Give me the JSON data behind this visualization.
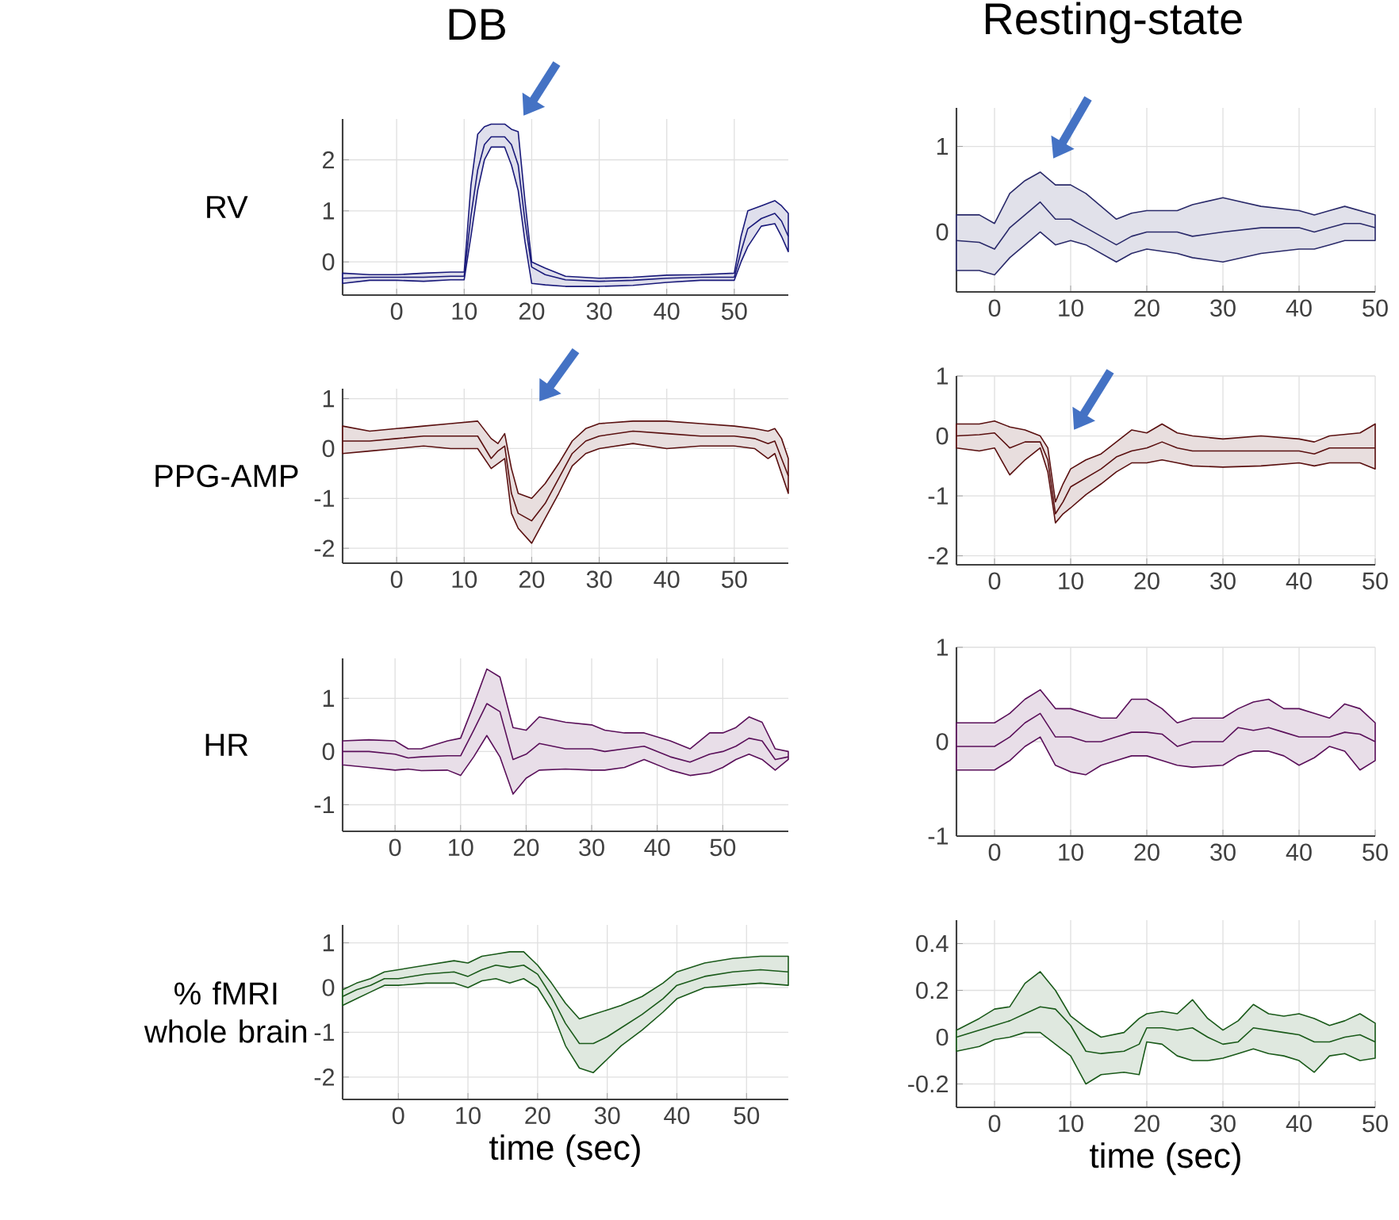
{
  "chart_data": [
    {
      "type": "line",
      "title": "DB",
      "ylabel": "RV",
      "xlim": [
        -8,
        58
      ],
      "ylim": [
        -0.65,
        2.8
      ],
      "xticks": [
        0,
        10,
        20,
        30,
        40,
        50
      ],
      "yticks": [
        0,
        1,
        2
      ],
      "grid": true,
      "series": [
        {
          "color": "#1a1a7a",
          "x": [
            -8,
            -4,
            0,
            4,
            8,
            10,
            11,
            12,
            13,
            14,
            16,
            17,
            18,
            19,
            20,
            22,
            25,
            30,
            35,
            40,
            45,
            50,
            51,
            52,
            54,
            56,
            57,
            58
          ],
          "values": [
            -0.32,
            -0.3,
            -0.3,
            -0.3,
            -0.28,
            -0.28,
            0.9,
            1.8,
            2.3,
            2.45,
            2.45,
            2.3,
            1.9,
            0.8,
            -0.1,
            -0.25,
            -0.35,
            -0.38,
            -0.36,
            -0.32,
            -0.3,
            -0.3,
            0.2,
            0.65,
            0.85,
            0.95,
            0.8,
            0.5
          ],
          "upper": [
            -0.22,
            -0.25,
            -0.25,
            -0.22,
            -0.2,
            -0.2,
            1.5,
            2.5,
            2.65,
            2.7,
            2.7,
            2.6,
            2.55,
            1.2,
            0.0,
            -0.12,
            -0.28,
            -0.32,
            -0.3,
            -0.26,
            -0.25,
            -0.22,
            0.5,
            1.0,
            1.1,
            1.2,
            1.1,
            0.95
          ],
          "lower": [
            -0.42,
            -0.36,
            -0.36,
            -0.38,
            -0.35,
            -0.35,
            0.5,
            1.4,
            2.0,
            2.25,
            2.25,
            1.9,
            1.4,
            0.4,
            -0.42,
            -0.45,
            -0.48,
            -0.48,
            -0.46,
            -0.4,
            -0.36,
            -0.36,
            0.0,
            0.3,
            0.7,
            0.75,
            0.5,
            0.2
          ]
        }
      ]
    },
    {
      "type": "line",
      "title": "Resting-state",
      "xlim": [
        -5,
        50
      ],
      "ylim": [
        -0.7,
        1.45
      ],
      "xticks": [
        0,
        10,
        20,
        30,
        40,
        50
      ],
      "yticks": [
        0,
        1
      ],
      "grid": true,
      "series": [
        {
          "color": "#2a2a6a",
          "x": [
            -5,
            -2,
            0,
            2,
            4,
            6,
            8,
            10,
            12,
            16,
            18,
            20,
            24,
            26,
            30,
            35,
            40,
            42,
            44,
            46,
            48,
            50
          ],
          "values": [
            -0.1,
            -0.12,
            -0.2,
            0.05,
            0.2,
            0.35,
            0.15,
            0.15,
            0.05,
            -0.15,
            -0.05,
            0.0,
            0.0,
            -0.05,
            0.0,
            0.05,
            0.05,
            0.0,
            0.05,
            0.1,
            0.1,
            0.05
          ],
          "upper": [
            0.2,
            0.2,
            0.1,
            0.45,
            0.6,
            0.7,
            0.55,
            0.55,
            0.45,
            0.15,
            0.22,
            0.25,
            0.25,
            0.32,
            0.4,
            0.3,
            0.25,
            0.2,
            0.25,
            0.3,
            0.25,
            0.2
          ],
          "lower": [
            -0.45,
            -0.45,
            -0.5,
            -0.3,
            -0.15,
            0.0,
            -0.15,
            -0.1,
            -0.15,
            -0.35,
            -0.25,
            -0.2,
            -0.25,
            -0.3,
            -0.35,
            -0.25,
            -0.2,
            -0.2,
            -0.15,
            -0.1,
            -0.1,
            -0.1
          ]
        }
      ]
    },
    {
      "type": "line",
      "ylabel": "PPG-AMP",
      "xlim": [
        -8,
        58
      ],
      "ylim": [
        -2.3,
        1.2
      ],
      "xticks": [
        0,
        10,
        20,
        30,
        40,
        50
      ],
      "yticks": [
        -2,
        -1,
        0,
        1
      ],
      "grid": true,
      "series": [
        {
          "color": "#5a1010",
          "x": [
            -8,
            -4,
            0,
            4,
            8,
            12,
            14,
            15,
            16,
            17,
            18,
            20,
            22,
            24,
            26,
            28,
            30,
            35,
            40,
            45,
            50,
            53,
            55,
            56,
            57,
            58
          ],
          "values": [
            0.15,
            0.15,
            0.2,
            0.25,
            0.25,
            0.25,
            -0.2,
            -0.05,
            0.05,
            -0.9,
            -1.3,
            -1.45,
            -1.1,
            -0.6,
            -0.1,
            0.15,
            0.25,
            0.35,
            0.3,
            0.25,
            0.25,
            0.2,
            0.1,
            0.15,
            -0.2,
            -0.55
          ],
          "upper": [
            0.45,
            0.35,
            0.4,
            0.45,
            0.5,
            0.55,
            0.2,
            0.1,
            0.3,
            -0.4,
            -0.9,
            -1.0,
            -0.7,
            -0.3,
            0.15,
            0.4,
            0.5,
            0.55,
            0.55,
            0.5,
            0.45,
            0.4,
            0.35,
            0.4,
            0.2,
            -0.2
          ],
          "lower": [
            -0.1,
            -0.05,
            0.0,
            0.05,
            0.0,
            0.0,
            -0.4,
            -0.3,
            -0.2,
            -1.3,
            -1.6,
            -1.9,
            -1.4,
            -0.9,
            -0.35,
            -0.1,
            0.0,
            0.1,
            0.0,
            0.05,
            0.05,
            0.0,
            -0.2,
            -0.1,
            -0.5,
            -0.9
          ]
        }
      ]
    },
    {
      "type": "line",
      "xlim": [
        -5,
        50
      ],
      "ylim": [
        -2.15,
        1
      ],
      "xticks": [
        0,
        10,
        20,
        30,
        40,
        50
      ],
      "yticks": [
        -2,
        -1,
        0,
        1
      ],
      "grid": true,
      "series": [
        {
          "color": "#5a1010",
          "x": [
            -5,
            -2,
            0,
            2,
            4,
            6,
            7,
            8,
            9,
            10,
            12,
            14,
            16,
            18,
            20,
            22,
            24,
            26,
            30,
            35,
            40,
            42,
            44,
            48,
            50
          ],
          "values": [
            0.0,
            0.02,
            0.05,
            -0.2,
            -0.1,
            -0.1,
            -0.4,
            -1.3,
            -1.1,
            -0.85,
            -0.7,
            -0.55,
            -0.35,
            -0.25,
            -0.2,
            -0.1,
            -0.2,
            -0.25,
            -0.25,
            -0.25,
            -0.25,
            -0.3,
            -0.2,
            -0.2,
            -0.2
          ],
          "upper": [
            0.2,
            0.2,
            0.25,
            0.15,
            0.1,
            0.0,
            -0.2,
            -1.1,
            -0.8,
            -0.55,
            -0.4,
            -0.3,
            -0.1,
            0.1,
            0.05,
            0.2,
            0.05,
            0.0,
            -0.05,
            0.0,
            -0.05,
            -0.1,
            0.0,
            0.05,
            0.2
          ],
          "lower": [
            -0.2,
            -0.25,
            -0.2,
            -0.65,
            -0.4,
            -0.2,
            -0.6,
            -1.45,
            -1.3,
            -1.2,
            -0.98,
            -0.8,
            -0.6,
            -0.45,
            -0.45,
            -0.4,
            -0.45,
            -0.5,
            -0.52,
            -0.5,
            -0.45,
            -0.5,
            -0.45,
            -0.45,
            -0.55
          ]
        }
      ]
    },
    {
      "type": "line",
      "ylabel": "HR",
      "xlim": [
        -8,
        60
      ],
      "ylim": [
        -1.5,
        1.75
      ],
      "xticks": [
        0,
        10,
        20,
        30,
        40,
        50
      ],
      "yticks": [
        -1,
        0,
        1
      ],
      "grid": true,
      "series": [
        {
          "color": "#5a105a",
          "x": [
            -8,
            -4,
            0,
            2,
            4,
            8,
            10,
            12,
            14,
            16,
            18,
            20,
            22,
            26,
            30,
            32,
            35,
            38,
            42,
            45,
            48,
            50,
            52,
            54,
            56,
            58,
            60
          ],
          "values": [
            0.0,
            0.0,
            -0.05,
            -0.12,
            -0.1,
            -0.08,
            -0.08,
            0.4,
            0.9,
            0.75,
            -0.15,
            -0.05,
            0.15,
            0.05,
            0.05,
            0.0,
            0.05,
            0.1,
            -0.1,
            -0.2,
            -0.05,
            0.0,
            0.1,
            0.25,
            0.2,
            -0.15,
            -0.1
          ],
          "upper": [
            0.2,
            0.22,
            0.2,
            0.05,
            0.05,
            0.2,
            0.25,
            0.88,
            1.55,
            1.4,
            0.45,
            0.4,
            0.65,
            0.55,
            0.5,
            0.4,
            0.35,
            0.35,
            0.2,
            0.05,
            0.35,
            0.35,
            0.45,
            0.65,
            0.55,
            0.05,
            0.0
          ],
          "lower": [
            -0.25,
            -0.3,
            -0.35,
            -0.33,
            -0.36,
            -0.35,
            -0.45,
            -0.1,
            0.3,
            -0.1,
            -0.8,
            -0.5,
            -0.35,
            -0.33,
            -0.35,
            -0.35,
            -0.3,
            -0.15,
            -0.35,
            -0.45,
            -0.4,
            -0.3,
            -0.15,
            -0.05,
            -0.15,
            -0.35,
            -0.15
          ]
        }
      ]
    },
    {
      "type": "line",
      "xlim": [
        -5,
        50
      ],
      "ylim": [
        -1,
        1
      ],
      "xticks": [
        0,
        10,
        20,
        30,
        40,
        50
      ],
      "yticks": [
        -1,
        0,
        1
      ],
      "grid": true,
      "series": [
        {
          "color": "#5a105a",
          "x": [
            -5,
            0,
            2,
            4,
            6,
            8,
            10,
            12,
            14,
            16,
            18,
            20,
            22,
            24,
            26,
            30,
            32,
            34,
            36,
            38,
            40,
            42,
            44,
            46,
            48,
            50
          ],
          "values": [
            -0.05,
            -0.05,
            0.05,
            0.2,
            0.3,
            0.05,
            0.05,
            0.0,
            0.0,
            0.05,
            0.1,
            0.1,
            0.08,
            -0.05,
            0.0,
            0.0,
            0.15,
            0.12,
            0.15,
            0.1,
            0.05,
            0.05,
            0.05,
            0.1,
            0.08,
            0.0
          ],
          "upper": [
            0.2,
            0.2,
            0.3,
            0.45,
            0.55,
            0.35,
            0.35,
            0.3,
            0.25,
            0.25,
            0.45,
            0.45,
            0.35,
            0.2,
            0.25,
            0.25,
            0.35,
            0.42,
            0.45,
            0.35,
            0.35,
            0.3,
            0.25,
            0.4,
            0.35,
            0.2
          ],
          "lower": [
            -0.3,
            -0.3,
            -0.2,
            -0.05,
            0.05,
            -0.25,
            -0.32,
            -0.35,
            -0.25,
            -0.2,
            -0.15,
            -0.15,
            -0.2,
            -0.25,
            -0.27,
            -0.25,
            -0.15,
            -0.1,
            -0.1,
            -0.15,
            -0.25,
            -0.17,
            -0.05,
            -0.1,
            -0.3,
            -0.2
          ]
        }
      ]
    },
    {
      "type": "line",
      "ylabel": "% fMRI whole brain",
      "xlabel": "time (sec)",
      "xlim": [
        -8,
        56
      ],
      "ylim": [
        -2.5,
        1.4
      ],
      "xticks": [
        0,
        10,
        20,
        30,
        40,
        50
      ],
      "yticks": [
        -2,
        -1,
        0,
        1
      ],
      "grid": true,
      "series": [
        {
          "color": "#1a5a1a",
          "x": [
            -8,
            -6,
            -4,
            -2,
            0,
            4,
            8,
            10,
            12,
            14,
            16,
            18,
            20,
            22,
            24,
            26,
            28,
            30,
            32,
            35,
            38,
            40,
            44,
            48,
            52,
            56
          ],
          "values": [
            -0.2,
            -0.05,
            0.05,
            0.2,
            0.2,
            0.3,
            0.35,
            0.25,
            0.4,
            0.5,
            0.45,
            0.5,
            0.3,
            -0.2,
            -0.8,
            -1.25,
            -1.25,
            -1.1,
            -0.9,
            -0.6,
            -0.25,
            0.05,
            0.25,
            0.35,
            0.4,
            0.35
          ],
          "upper": [
            -0.05,
            0.1,
            0.2,
            0.35,
            0.4,
            0.5,
            0.6,
            0.55,
            0.7,
            0.75,
            0.8,
            0.8,
            0.5,
            0.1,
            -0.35,
            -0.7,
            -0.6,
            -0.5,
            -0.4,
            -0.2,
            0.1,
            0.35,
            0.55,
            0.65,
            0.7,
            0.7
          ],
          "lower": [
            -0.4,
            -0.25,
            -0.1,
            0.05,
            0.05,
            0.1,
            0.1,
            0.0,
            0.15,
            0.2,
            0.1,
            0.2,
            0.0,
            -0.5,
            -1.3,
            -1.8,
            -1.9,
            -1.6,
            -1.3,
            -0.95,
            -0.55,
            -0.25,
            0.0,
            0.05,
            0.1,
            0.05
          ]
        }
      ]
    },
    {
      "type": "line",
      "xlabel": "time (sec)",
      "xlim": [
        -5,
        50
      ],
      "ylim": [
        -0.3,
        0.5
      ],
      "xticks": [
        0,
        10,
        20,
        30,
        40,
        50
      ],
      "yticks": [
        -0.2,
        0,
        0.2,
        0.4
      ],
      "grid": true,
      "series": [
        {
          "color": "#1a5a1a",
          "x": [
            -5,
            -2,
            0,
            2,
            4,
            6,
            8,
            10,
            12,
            14,
            17,
            19,
            20,
            22,
            24,
            26,
            28,
            30,
            32,
            34,
            36,
            38,
            40,
            42,
            44,
            46,
            48,
            50
          ],
          "values": [
            0.0,
            0.03,
            0.05,
            0.07,
            0.1,
            0.13,
            0.12,
            0.05,
            -0.06,
            -0.07,
            -0.06,
            -0.03,
            0.04,
            0.04,
            0.03,
            0.04,
            0.0,
            -0.03,
            -0.02,
            0.04,
            0.03,
            0.02,
            0.01,
            -0.02,
            -0.02,
            0.0,
            0.01,
            -0.02
          ],
          "upper": [
            0.03,
            0.08,
            0.12,
            0.13,
            0.23,
            0.28,
            0.2,
            0.09,
            0.04,
            0.0,
            0.02,
            0.08,
            0.1,
            0.11,
            0.1,
            0.16,
            0.08,
            0.03,
            0.07,
            0.14,
            0.1,
            0.09,
            0.1,
            0.08,
            0.05,
            0.07,
            0.1,
            0.06
          ],
          "lower": [
            -0.06,
            -0.04,
            -0.01,
            0.0,
            0.02,
            0.02,
            -0.03,
            -0.08,
            -0.2,
            -0.16,
            -0.15,
            -0.16,
            -0.02,
            -0.03,
            -0.08,
            -0.1,
            -0.1,
            -0.09,
            -0.07,
            -0.05,
            -0.07,
            -0.08,
            -0.1,
            -0.15,
            -0.08,
            -0.07,
            -0.1,
            -0.09
          ]
        }
      ]
    }
  ]
}
